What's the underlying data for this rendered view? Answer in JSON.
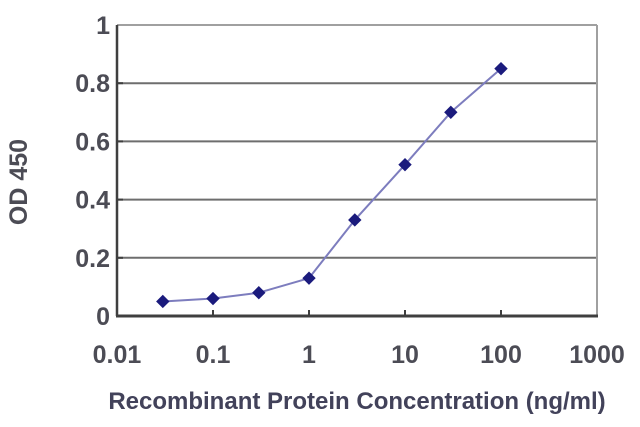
{
  "figure": {
    "description": "ELISA standard curve: OD 450 versus recombinant protein concentration on a logarithmic x-axis"
  },
  "chart_data": {
    "type": "line",
    "title": "",
    "xlabel": "Recombinant Protein Concentration (ng/ml)",
    "ylabel": "OD 450",
    "x_scale": "log",
    "xlim": [
      0.01,
      1000
    ],
    "ylim": [
      0,
      1
    ],
    "x": [
      0.03,
      0.1,
      0.3,
      1,
      3,
      10,
      30,
      100
    ],
    "y": [
      0.05,
      0.06,
      0.08,
      0.13,
      0.33,
      0.52,
      0.7,
      0.85
    ],
    "series": [
      {
        "name": "OD 450",
        "values": [
          0.05,
          0.06,
          0.08,
          0.13,
          0.33,
          0.52,
          0.7,
          0.85
        ]
      }
    ],
    "x_ticks": [
      0.01,
      0.1,
      1,
      10,
      100,
      1000
    ],
    "x_tick_labels": [
      "0.01",
      "0.1",
      "1",
      "10",
      "100",
      "1000"
    ],
    "y_ticks": [
      0,
      0.2,
      0.4,
      0.6,
      0.8,
      1
    ],
    "y_tick_labels": [
      "0",
      "0.2",
      "0.4",
      "0.6",
      "0.8",
      "1"
    ],
    "grid": "horizontal",
    "legend_position": "none",
    "marker": "diamond",
    "colors": {
      "line": "#7d7dbe",
      "marker": "#1b1b7d",
      "grid": "#6e6e6e",
      "axis_dark": "#3f3f3f",
      "frame_light": "#a0a0a0",
      "tick_text": "#4c4c55",
      "axis_label_text": "#42425a",
      "background": "#ffffff"
    }
  }
}
